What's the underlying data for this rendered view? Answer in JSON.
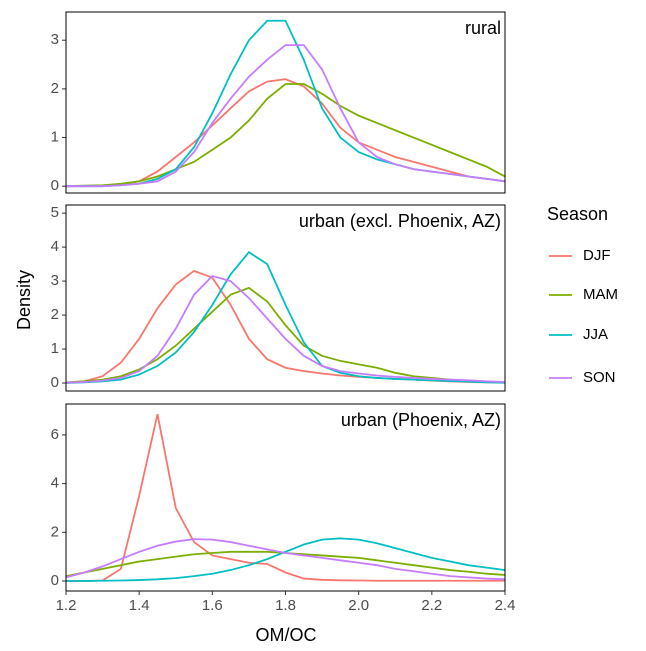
{
  "x_label": "OM/OC",
  "y_label": "Density",
  "legend_title": "Season",
  "xlim": [
    1.2,
    2.4
  ],
  "xticks": [
    1.2,
    1.4,
    1.6,
    1.8,
    {
      "value": 2.0,
      "label": "2.0"
    },
    2.2,
    2.4
  ],
  "chart_data": [
    {
      "type": "line",
      "title": "rural",
      "x": [
        1.2,
        1.25,
        1.3,
        1.35,
        1.4,
        1.45,
        1.5,
        1.55,
        1.6,
        1.65,
        1.7,
        1.75,
        1.8,
        1.85,
        1.9,
        1.95,
        2.0,
        2.05,
        2.1,
        2.15,
        2.2,
        2.25,
        2.3,
        2.35,
        2.4
      ],
      "ylim": [
        -0.14,
        3.58
      ],
      "yticks": [
        0,
        1,
        2,
        3
      ],
      "series": [
        {
          "name": "DJF",
          "color": "#F8766D",
          "values": [
            0,
            0,
            0.01,
            0.03,
            0.1,
            0.3,
            0.6,
            0.9,
            1.25,
            1.6,
            1.95,
            2.15,
            2.2,
            2.05,
            1.7,
            1.2,
            0.9,
            0.75,
            0.6,
            0.5,
            0.4,
            0.3,
            0.2,
            0.15,
            0.1
          ]
        },
        {
          "name": "MAM",
          "color": "#7CAE00",
          "values": [
            0,
            0.01,
            0.02,
            0.05,
            0.1,
            0.2,
            0.35,
            0.5,
            0.75,
            1.0,
            1.35,
            1.8,
            2.1,
            2.1,
            1.9,
            1.65,
            1.45,
            1.3,
            1.15,
            1.0,
            0.85,
            0.7,
            0.55,
            0.4,
            0.2
          ]
        },
        {
          "name": "JJA",
          "color": "#00BFC4",
          "values": [
            0,
            0,
            0,
            0.02,
            0.05,
            0.15,
            0.35,
            0.8,
            1.5,
            2.3,
            3.0,
            3.4,
            3.4,
            2.6,
            1.6,
            1.0,
            0.7,
            0.55,
            0.45,
            0.35,
            0.3,
            0.25,
            0.2,
            0.15,
            0.1
          ]
        },
        {
          "name": "SON",
          "color": "#C77CFF",
          "values": [
            0,
            0,
            0,
            0.02,
            0.05,
            0.1,
            0.3,
            0.7,
            1.3,
            1.8,
            2.25,
            2.6,
            2.9,
            2.9,
            2.4,
            1.6,
            0.9,
            0.6,
            0.45,
            0.35,
            0.3,
            0.25,
            0.2,
            0.15,
            0.1
          ]
        }
      ]
    },
    {
      "type": "line",
      "title": "urban (excl. Phoenix, AZ)",
      "x": [
        1.2,
        1.25,
        1.3,
        1.35,
        1.4,
        1.45,
        1.5,
        1.55,
        1.6,
        1.65,
        1.7,
        1.75,
        1.8,
        1.85,
        1.9,
        1.95,
        2.0,
        2.05,
        2.1,
        2.15,
        2.2,
        2.25,
        2.3,
        2.35,
        2.4
      ],
      "ylim": [
        -0.235,
        5.24
      ],
      "yticks": [
        0,
        1,
        2,
        3,
        4,
        5
      ],
      "series": [
        {
          "name": "DJF",
          "color": "#F8766D",
          "values": [
            0,
            0.05,
            0.2,
            0.6,
            1.3,
            2.2,
            2.9,
            3.3,
            3.1,
            2.3,
            1.3,
            0.7,
            0.45,
            0.35,
            0.28,
            0.22,
            0.18,
            0.15,
            0.12,
            0.1,
            0.07,
            0.05,
            0.03,
            0.02,
            0.01
          ]
        },
        {
          "name": "MAM",
          "color": "#7CAE00",
          "values": [
            0.02,
            0.05,
            0.1,
            0.2,
            0.4,
            0.7,
            1.1,
            1.6,
            2.1,
            2.6,
            2.8,
            2.4,
            1.7,
            1.1,
            0.8,
            0.65,
            0.55,
            0.45,
            0.3,
            0.2,
            0.15,
            0.1,
            0.07,
            0.04,
            0.02
          ]
        },
        {
          "name": "JJA",
          "color": "#00BFC4",
          "values": [
            0,
            0.02,
            0.05,
            0.1,
            0.25,
            0.5,
            0.9,
            1.5,
            2.3,
            3.2,
            3.85,
            3.5,
            2.3,
            1.2,
            0.5,
            0.3,
            0.2,
            0.15,
            0.12,
            0.1,
            0.08,
            0.06,
            0.04,
            0.02,
            0.01
          ]
        },
        {
          "name": "SON",
          "color": "#C77CFF",
          "values": [
            0.01,
            0.03,
            0.07,
            0.15,
            0.35,
            0.8,
            1.6,
            2.6,
            3.15,
            3.0,
            2.5,
            1.9,
            1.3,
            0.8,
            0.5,
            0.35,
            0.28,
            0.22,
            0.18,
            0.15,
            0.12,
            0.1,
            0.08,
            0.05,
            0.03
          ]
        }
      ]
    },
    {
      "type": "line",
      "title": "urban (Phoenix, AZ)",
      "x": [
        1.2,
        1.25,
        1.3,
        1.35,
        1.4,
        1.45,
        1.5,
        1.55,
        1.6,
        1.65,
        1.7,
        1.75,
        1.8,
        1.85,
        1.9,
        1.95,
        2.0,
        2.05,
        2.1,
        2.15,
        2.2,
        2.25,
        2.3,
        2.35,
        2.4
      ],
      "ylim": [
        -0.41,
        7.27
      ],
      "yticks": [
        0,
        2,
        4,
        6
      ],
      "series": [
        {
          "name": "DJF",
          "color": "#F8766D",
          "values": [
            0,
            0,
            0.02,
            0.5,
            3.5,
            6.85,
            3.0,
            1.6,
            1.05,
            0.9,
            0.75,
            0.7,
            0.35,
            0.1,
            0.05,
            0.03,
            0.02,
            0.01,
            0.01,
            0.01,
            0.01,
            0.01,
            0.01,
            0.01,
            0.01
          ]
        },
        {
          "name": "MAM",
          "color": "#7CAE00",
          "values": [
            0.2,
            0.35,
            0.5,
            0.65,
            0.8,
            0.9,
            1.0,
            1.1,
            1.15,
            1.2,
            1.2,
            1.2,
            1.15,
            1.1,
            1.05,
            1.0,
            0.95,
            0.85,
            0.75,
            0.65,
            0.55,
            0.45,
            0.38,
            0.3,
            0.25
          ]
        },
        {
          "name": "JJA",
          "color": "#00BFC4",
          "values": [
            0,
            0,
            0.01,
            0.02,
            0.04,
            0.07,
            0.12,
            0.2,
            0.3,
            0.45,
            0.65,
            0.9,
            1.2,
            1.5,
            1.7,
            1.75,
            1.7,
            1.55,
            1.35,
            1.15,
            0.95,
            0.8,
            0.65,
            0.55,
            0.45
          ]
        },
        {
          "name": "SON",
          "color": "#C77CFF",
          "values": [
            0.15,
            0.35,
            0.6,
            0.9,
            1.2,
            1.45,
            1.62,
            1.72,
            1.7,
            1.6,
            1.45,
            1.3,
            1.15,
            1.05,
            0.95,
            0.85,
            0.75,
            0.65,
            0.5,
            0.4,
            0.3,
            0.2,
            0.15,
            0.1,
            0.07
          ]
        }
      ]
    }
  ]
}
